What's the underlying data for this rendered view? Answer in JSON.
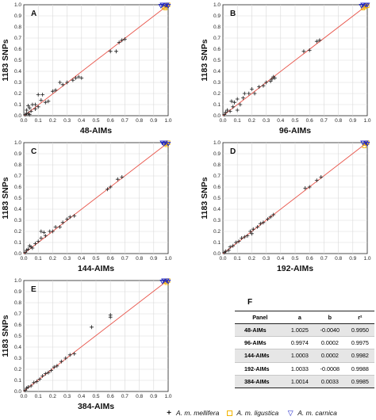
{
  "legend": {
    "mellifera": {
      "symbol": "+",
      "label": "A. m. mellifera",
      "color": "#1a1a1a"
    },
    "ligustica": {
      "symbol": "square",
      "label": "A. m. ligustica",
      "color": "#f2b400"
    },
    "carnica": {
      "symbol": "▽",
      "label": "A. m. carnica",
      "color": "#1c24c8"
    }
  },
  "fit_line_color": "#e8544a",
  "table": {
    "letter": "F",
    "headers": [
      "Panel",
      "a",
      "b",
      "r²"
    ],
    "rows": [
      {
        "panel": "48-AIMs",
        "a": "1.0025",
        "b": "-0.0040",
        "r2": "0.9950"
      },
      {
        "panel": "96-AIMs",
        "a": "0.9974",
        "b": "0.0002",
        "r2": "0.9975"
      },
      {
        "panel": "144-AIMs",
        "a": "1.0003",
        "b": "0.0002",
        "r2": "0.9982"
      },
      {
        "panel": "192-AIMs",
        "a": "1.0033",
        "b": "-0.0008",
        "r2": "0.9988"
      },
      {
        "panel": "384-AIMs",
        "a": "1.0014",
        "b": "0.0033",
        "r2": "0.9985"
      }
    ]
  },
  "chart_data": [
    {
      "type": "scatter",
      "letter": "A",
      "xlabel": "48-AIMs",
      "ylabel": "1183 SNPs",
      "xlim": [
        0,
        1
      ],
      "ylim": [
        0,
        1
      ],
      "ticks": [
        "0.0",
        "0.1",
        "0.2",
        "0.3",
        "0.4",
        "0.5",
        "0.6",
        "0.7",
        "0.8",
        "0.9",
        "1.0"
      ],
      "grid": true,
      "fit": {
        "a": 1.0025,
        "b": -0.004
      },
      "series": [
        {
          "name": "A. m. mellifera",
          "points": [
            [
              0.02,
              0.05
            ],
            [
              0.04,
              0.07
            ],
            [
              0.01,
              0.01
            ],
            [
              0.03,
              0.02
            ],
            [
              0.05,
              0.04
            ],
            [
              0.06,
              0.1
            ],
            [
              0.08,
              0.06
            ],
            [
              0.1,
              0.08
            ],
            [
              0.12,
              0.14
            ],
            [
              0.1,
              0.19
            ],
            [
              0.13,
              0.19
            ],
            [
              0.15,
              0.12
            ],
            [
              0.17,
              0.13
            ],
            [
              0.2,
              0.22
            ],
            [
              0.22,
              0.23
            ],
            [
              0.25,
              0.3
            ],
            [
              0.27,
              0.28
            ],
            [
              0.3,
              0.3
            ],
            [
              0.34,
              0.32
            ],
            [
              0.36,
              0.34
            ],
            [
              0.38,
              0.35
            ],
            [
              0.4,
              0.34
            ],
            [
              0.02,
              0.02
            ],
            [
              0.04,
              0.01
            ],
            [
              0.08,
              0.1
            ],
            [
              0.03,
              0.09
            ],
            [
              0.6,
              0.58
            ],
            [
              0.64,
              0.58
            ],
            [
              0.66,
              0.66
            ],
            [
              0.68,
              0.68
            ],
            [
              0.7,
              0.69
            ],
            [
              0.98,
              0.99
            ],
            [
              0.99,
              0.98
            ]
          ]
        },
        {
          "name": "A. m. ligustica",
          "points": [
            [
              0.99,
              0.99
            ],
            [
              0.98,
              0.97
            ],
            [
              1.0,
              1.0
            ],
            [
              0.97,
              0.98
            ]
          ]
        },
        {
          "name": "A. m. carnica",
          "points": [
            [
              0.96,
              1.0
            ],
            [
              0.98,
              1.0
            ],
            [
              1.0,
              0.99
            ],
            [
              0.95,
              0.99
            ],
            [
              0.99,
              1.0
            ]
          ]
        }
      ]
    },
    {
      "type": "scatter",
      "letter": "B",
      "xlabel": "96-AIMs",
      "ylabel": "1183 SNPs",
      "xlim": [
        0,
        1
      ],
      "ylim": [
        0,
        1
      ],
      "ticks": [
        "0.0",
        "0.1",
        "0.2",
        "0.3",
        "0.4",
        "0.5",
        "0.6",
        "0.7",
        "0.8",
        "0.9",
        "1.0"
      ],
      "grid": true,
      "fit": {
        "a": 0.9974,
        "b": 0.0002
      },
      "series": [
        {
          "name": "A. m. mellifera",
          "points": [
            [
              0.01,
              0.01
            ],
            [
              0.02,
              0.03
            ],
            [
              0.03,
              0.05
            ],
            [
              0.05,
              0.04
            ],
            [
              0.07,
              0.08
            ],
            [
              0.08,
              0.12
            ],
            [
              0.1,
              0.15
            ],
            [
              0.12,
              0.1
            ],
            [
              0.14,
              0.16
            ],
            [
              0.15,
              0.2
            ],
            [
              0.18,
              0.2
            ],
            [
              0.2,
              0.24
            ],
            [
              0.22,
              0.2
            ],
            [
              0.25,
              0.26
            ],
            [
              0.28,
              0.27
            ],
            [
              0.3,
              0.3
            ],
            [
              0.33,
              0.31
            ],
            [
              0.34,
              0.33
            ],
            [
              0.35,
              0.35
            ],
            [
              0.36,
              0.34
            ],
            [
              0.06,
              0.13
            ],
            [
              0.1,
              0.05
            ],
            [
              0.56,
              0.58
            ],
            [
              0.6,
              0.59
            ],
            [
              0.65,
              0.67
            ],
            [
              0.67,
              0.68
            ],
            [
              0.98,
              0.99
            ]
          ]
        },
        {
          "name": "A. m. ligustica",
          "points": [
            [
              0.99,
              0.99
            ],
            [
              0.98,
              0.98
            ],
            [
              1.0,
              0.99
            ],
            [
              0.97,
              0.97
            ]
          ]
        },
        {
          "name": "A. m. carnica",
          "points": [
            [
              0.97,
              1.0
            ],
            [
              0.99,
              1.0
            ],
            [
              1.0,
              1.0
            ],
            [
              0.96,
              0.99
            ]
          ]
        }
      ]
    },
    {
      "type": "scatter",
      "letter": "C",
      "xlabel": "144-AIMs",
      "ylabel": "1183 SNPs",
      "xlim": [
        0,
        1
      ],
      "ylim": [
        0,
        1
      ],
      "ticks": [
        "0.0",
        "0.1",
        "0.2",
        "0.3",
        "0.4",
        "0.5",
        "0.6",
        "0.7",
        "0.8",
        "0.9",
        "1.0"
      ],
      "grid": true,
      "fit": {
        "a": 1.0003,
        "b": 0.0002
      },
      "series": [
        {
          "name": "A. m. mellifera",
          "points": [
            [
              0.01,
              0.01
            ],
            [
              0.02,
              0.03
            ],
            [
              0.03,
              0.04
            ],
            [
              0.05,
              0.06
            ],
            [
              0.06,
              0.05
            ],
            [
              0.08,
              0.09
            ],
            [
              0.1,
              0.11
            ],
            [
              0.12,
              0.14
            ],
            [
              0.14,
              0.19
            ],
            [
              0.15,
              0.16
            ],
            [
              0.18,
              0.2
            ],
            [
              0.2,
              0.2
            ],
            [
              0.22,
              0.24
            ],
            [
              0.25,
              0.24
            ],
            [
              0.27,
              0.28
            ],
            [
              0.3,
              0.31
            ],
            [
              0.32,
              0.33
            ],
            [
              0.35,
              0.34
            ],
            [
              0.04,
              0.07
            ],
            [
              0.12,
              0.2
            ],
            [
              0.58,
              0.58
            ],
            [
              0.6,
              0.6
            ],
            [
              0.65,
              0.67
            ],
            [
              0.68,
              0.69
            ],
            [
              0.99,
              0.99
            ]
          ]
        },
        {
          "name": "A. m. ligustica",
          "points": [
            [
              0.99,
              0.98
            ],
            [
              0.98,
              0.99
            ],
            [
              1.0,
              1.0
            ]
          ]
        },
        {
          "name": "A. m. carnica",
          "points": [
            [
              0.96,
              1.0
            ],
            [
              0.98,
              1.0
            ],
            [
              1.0,
              0.99
            ],
            [
              0.97,
              0.99
            ]
          ]
        }
      ]
    },
    {
      "type": "scatter",
      "letter": "D",
      "xlabel": "192-AIMs",
      "ylabel": "1183 SNPs",
      "xlim": [
        0,
        1
      ],
      "ylim": [
        0,
        1
      ],
      "ticks": [
        "0.0",
        "0.1",
        "0.2",
        "0.3",
        "0.4",
        "0.5",
        "0.6",
        "0.7",
        "0.8",
        "0.9",
        "1.0"
      ],
      "grid": true,
      "fit": {
        "a": 1.0033,
        "b": -0.0008
      },
      "series": [
        {
          "name": "A. m. mellifera",
          "points": [
            [
              0.01,
              0.01
            ],
            [
              0.02,
              0.02
            ],
            [
              0.04,
              0.03
            ],
            [
              0.05,
              0.06
            ],
            [
              0.07,
              0.07
            ],
            [
              0.09,
              0.1
            ],
            [
              0.11,
              0.11
            ],
            [
              0.13,
              0.14
            ],
            [
              0.15,
              0.15
            ],
            [
              0.17,
              0.16
            ],
            [
              0.19,
              0.2
            ],
            [
              0.21,
              0.22
            ],
            [
              0.24,
              0.24
            ],
            [
              0.26,
              0.27
            ],
            [
              0.28,
              0.28
            ],
            [
              0.31,
              0.31
            ],
            [
              0.33,
              0.33
            ],
            [
              0.35,
              0.35
            ],
            [
              0.2,
              0.18
            ],
            [
              0.57,
              0.59
            ],
            [
              0.6,
              0.6
            ],
            [
              0.65,
              0.66
            ],
            [
              0.68,
              0.69
            ],
            [
              0.99,
              0.99
            ]
          ]
        },
        {
          "name": "A. m. ligustica",
          "points": [
            [
              0.99,
              0.99
            ],
            [
              0.98,
              0.97
            ],
            [
              1.0,
              1.0
            ]
          ]
        },
        {
          "name": "A. m. carnica",
          "points": [
            [
              0.97,
              1.0
            ],
            [
              0.99,
              1.0
            ],
            [
              1.0,
              0.99
            ]
          ]
        }
      ]
    },
    {
      "type": "scatter",
      "letter": "E",
      "xlabel": "384-AIMs",
      "ylabel": "1183 SNPs",
      "xlim": [
        0,
        1
      ],
      "ylim": [
        0,
        1
      ],
      "ticks": [
        "0.0",
        "0.1",
        "0.2",
        "0.3",
        "0.4",
        "0.5",
        "0.6",
        "0.7",
        "0.8",
        "0.9",
        "1.0"
      ],
      "grid": true,
      "fit": {
        "a": 1.0014,
        "b": 0.0033
      },
      "series": [
        {
          "name": "A. m. mellifera",
          "points": [
            [
              0.01,
              0.01
            ],
            [
              0.02,
              0.03
            ],
            [
              0.03,
              0.04
            ],
            [
              0.05,
              0.05
            ],
            [
              0.07,
              0.08
            ],
            [
              0.09,
              0.09
            ],
            [
              0.11,
              0.11
            ],
            [
              0.13,
              0.14
            ],
            [
              0.15,
              0.16
            ],
            [
              0.17,
              0.17
            ],
            [
              0.19,
              0.19
            ],
            [
              0.21,
              0.22
            ],
            [
              0.23,
              0.23
            ],
            [
              0.26,
              0.27
            ],
            [
              0.29,
              0.3
            ],
            [
              0.32,
              0.33
            ],
            [
              0.35,
              0.34
            ],
            [
              0.47,
              0.58
            ],
            [
              0.6,
              0.69
            ],
            [
              0.6,
              0.67
            ],
            [
              0.99,
              0.99
            ]
          ]
        },
        {
          "name": "A. m. ligustica",
          "points": [
            [
              0.99,
              0.98
            ],
            [
              0.98,
              0.99
            ],
            [
              1.0,
              1.0
            ]
          ]
        },
        {
          "name": "A. m. carnica",
          "points": [
            [
              0.97,
              1.0
            ],
            [
              0.99,
              1.0
            ],
            [
              1.0,
              0.99
            ],
            [
              0.96,
              0.99
            ]
          ]
        }
      ]
    }
  ]
}
